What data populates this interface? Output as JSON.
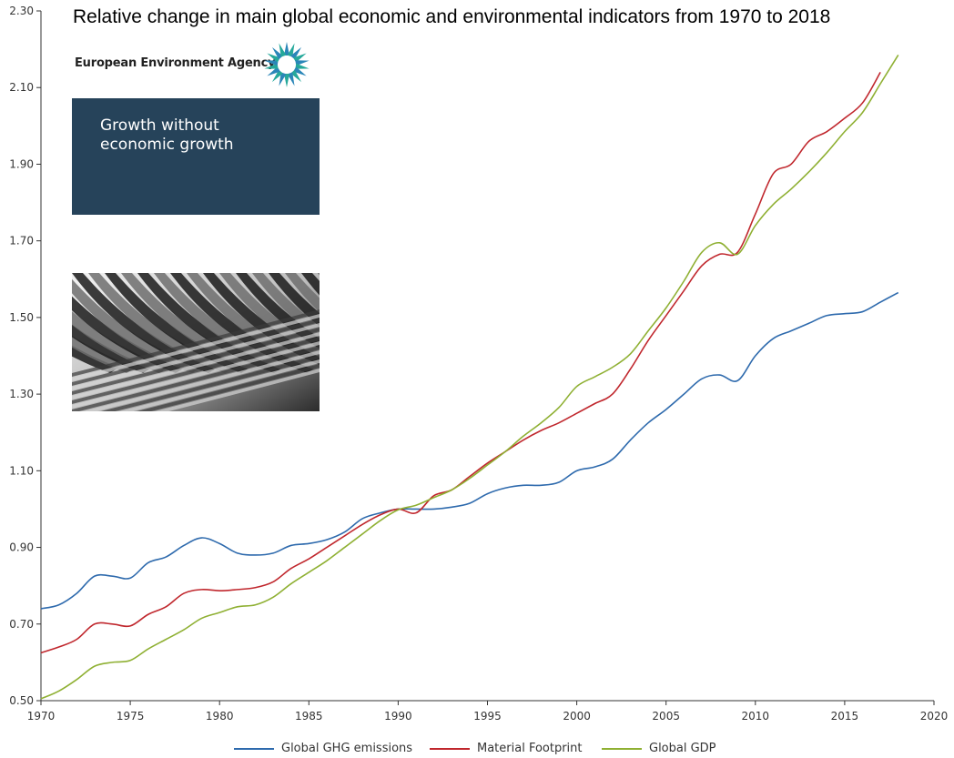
{
  "chart_data": {
    "type": "line",
    "title": "Relative change in main global economic and environmental indicators from 1970 to 2018",
    "xlabel": "",
    "ylabel": "",
    "xlim": [
      1970,
      2020
    ],
    "ylim": [
      0.5,
      2.3
    ],
    "x_ticks": [
      "1970",
      "1975",
      "1980",
      "1985",
      "1990",
      "1995",
      "2000",
      "2005",
      "2010",
      "2015",
      "2020"
    ],
    "y_ticks": [
      "0.50",
      "0.70",
      "0.90",
      "1.10",
      "1.30",
      "1.50",
      "1.70",
      "1.90",
      "2.10",
      "2.30"
    ],
    "grid": false,
    "legend_position": "bottom",
    "series": [
      {
        "name": "Global GHG emissions",
        "color": "#2e6aad",
        "x": [
          1970,
          1971,
          1972,
          1973,
          1974,
          1975,
          1976,
          1977,
          1978,
          1979,
          1980,
          1981,
          1982,
          1983,
          1984,
          1985,
          1986,
          1987,
          1988,
          1989,
          1990,
          1991,
          1992,
          1993,
          1994,
          1995,
          1996,
          1997,
          1998,
          1999,
          2000,
          2001,
          2002,
          2003,
          2004,
          2005,
          2006,
          2007,
          2008,
          2009,
          2010,
          2011,
          2012,
          2013,
          2014,
          2015,
          2016,
          2017,
          2018
        ],
        "values": [
          0.74,
          0.75,
          0.78,
          0.825,
          0.825,
          0.82,
          0.86,
          0.875,
          0.905,
          0.925,
          0.91,
          0.885,
          0.88,
          0.885,
          0.905,
          0.91,
          0.92,
          0.94,
          0.975,
          0.99,
          1.0,
          1.0,
          1.0,
          1.005,
          1.015,
          1.04,
          1.055,
          1.062,
          1.062,
          1.07,
          1.1,
          1.11,
          1.13,
          1.18,
          1.225,
          1.26,
          1.3,
          1.34,
          1.35,
          1.335,
          1.4,
          1.445,
          1.465,
          1.485,
          1.505,
          1.51,
          1.515,
          1.54,
          1.565
        ]
      },
      {
        "name": "Material Footprint",
        "color": "#c0272d",
        "x": [
          1970,
          1971,
          1972,
          1973,
          1974,
          1975,
          1976,
          1977,
          1978,
          1979,
          1980,
          1981,
          1982,
          1983,
          1984,
          1985,
          1986,
          1987,
          1988,
          1989,
          1990,
          1991,
          1992,
          1993,
          1994,
          1995,
          1996,
          1997,
          1998,
          1999,
          2000,
          2001,
          2002,
          2003,
          2004,
          2005,
          2006,
          2007,
          2008,
          2009,
          2010,
          2011,
          2012,
          2013,
          2014,
          2015,
          2016,
          2017
        ],
        "values": [
          0.625,
          0.64,
          0.66,
          0.7,
          0.7,
          0.695,
          0.725,
          0.745,
          0.78,
          0.79,
          0.787,
          0.79,
          0.795,
          0.81,
          0.845,
          0.87,
          0.9,
          0.93,
          0.96,
          0.985,
          1.0,
          0.99,
          1.035,
          1.05,
          1.085,
          1.12,
          1.15,
          1.18,
          1.205,
          1.225,
          1.25,
          1.275,
          1.3,
          1.365,
          1.44,
          1.505,
          1.57,
          1.635,
          1.665,
          1.67,
          1.77,
          1.875,
          1.9,
          1.96,
          1.985,
          2.02,
          2.06,
          2.14
        ]
      },
      {
        "name": "Global GDP",
        "color": "#8fb033",
        "x": [
          1970,
          1971,
          1972,
          1973,
          1974,
          1975,
          1976,
          1977,
          1978,
          1979,
          1980,
          1981,
          1982,
          1983,
          1984,
          1985,
          1986,
          1987,
          1988,
          1989,
          1990,
          1991,
          1992,
          1993,
          1994,
          1995,
          1996,
          1997,
          1998,
          1999,
          2000,
          2001,
          2002,
          2003,
          2004,
          2005,
          2006,
          2007,
          2008,
          2009,
          2010,
          2011,
          2012,
          2013,
          2014,
          2015,
          2016,
          2017,
          2018
        ],
        "values": [
          0.505,
          0.525,
          0.555,
          0.59,
          0.6,
          0.605,
          0.635,
          0.66,
          0.685,
          0.715,
          0.73,
          0.745,
          0.75,
          0.77,
          0.805,
          0.835,
          0.865,
          0.9,
          0.935,
          0.97,
          0.998,
          1.01,
          1.03,
          1.05,
          1.08,
          1.115,
          1.15,
          1.19,
          1.225,
          1.265,
          1.32,
          1.345,
          1.37,
          1.405,
          1.465,
          1.525,
          1.595,
          1.67,
          1.695,
          1.665,
          1.74,
          1.795,
          1.835,
          1.88,
          1.93,
          1.985,
          2.035,
          2.11,
          2.185
        ]
      }
    ]
  },
  "branding": {
    "agency_name": "European Environment Agency",
    "cover_title_line1": "Growth without",
    "cover_title_line2": "economic growth"
  }
}
